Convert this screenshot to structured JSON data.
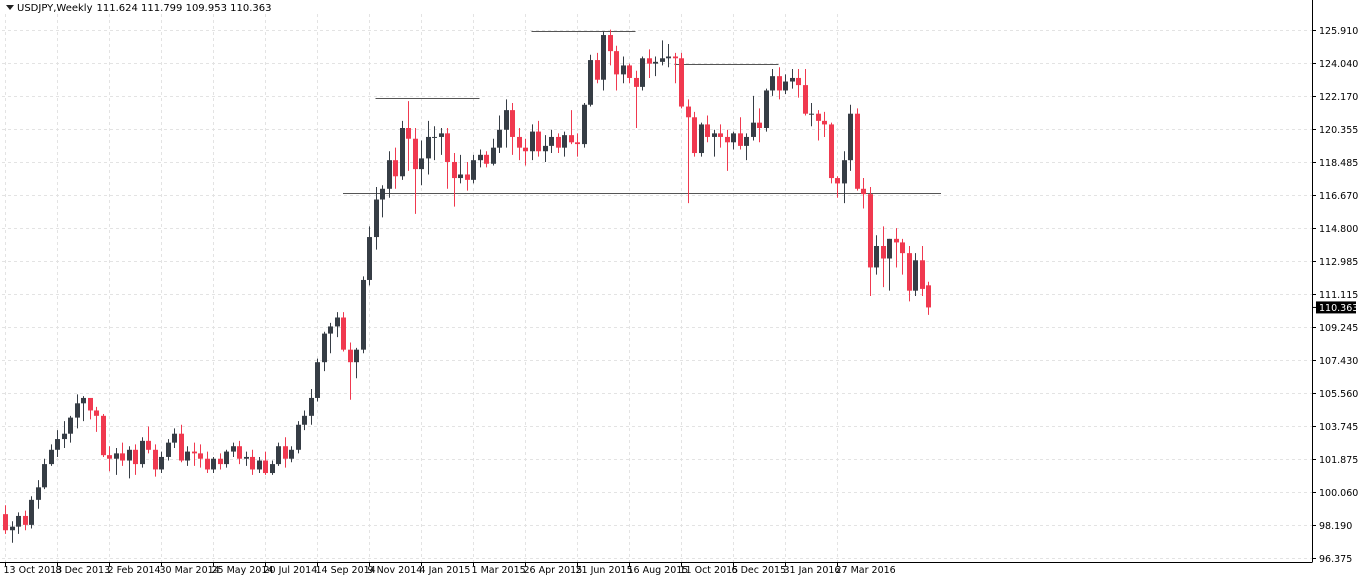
{
  "header": {
    "symbol_timeframe": "USDJPY,Weekly",
    "ohlc": "111.624 111.799 109.953 110.363"
  },
  "colors": {
    "bull": "#363d45",
    "bear": "#f0394f",
    "grid": "#e3e3e3",
    "level_line": "#555555",
    "axis": "#000000"
  },
  "chart_data": {
    "type": "candlestick",
    "symbol": "USDJPY",
    "timeframe": "Weekly",
    "current_price": 110.363,
    "current_price_label": "110.363",
    "y_ticks": [
      "125.910",
      "124.040",
      "122.170",
      "120.355",
      "118.485",
      "116.670",
      "114.800",
      "112.985",
      "111.115",
      "109.245",
      "107.430",
      "105.560",
      "103.745",
      "101.875",
      "100.060",
      "98.190",
      "96.375"
    ],
    "ylim": [
      96.375,
      127.2
    ],
    "x_tick_labels": [
      "13 Oct 2013",
      "8 Dec 2013",
      "2 Feb 2014",
      "30 Mar 2014",
      "25 May 2014",
      "20 Jul 2014",
      "14 Sep 2014",
      "9 Nov 2014",
      "4 Jan 2015",
      "1 Mar 2015",
      "26 Apr 2015",
      "21 Jun 2015",
      "16 Aug 2015",
      "11 Oct 2015",
      "6 Dec 2015",
      "31 Jan 2016",
      "27 Mar 2016"
    ],
    "grid": true,
    "levels": [
      {
        "price": 122.1,
        "from_week": 57,
        "to_week": 73
      },
      {
        "price": 125.85,
        "from_week": 81,
        "to_week": 97
      },
      {
        "price": 124.0,
        "from_week": 103,
        "to_week": 119
      },
      {
        "price": 116.75,
        "from_week": 52,
        "to_week": 144
      }
    ],
    "candles": [
      [
        98.8,
        99.3,
        97.7,
        97.9
      ],
      [
        97.9,
        98.4,
        97.2,
        98.1
      ],
      [
        98.1,
        98.9,
        97.7,
        98.7
      ],
      [
        98.7,
        99.0,
        97.9,
        98.2
      ],
      [
        98.2,
        99.8,
        98.0,
        99.6
      ],
      [
        99.6,
        100.7,
        99.1,
        100.3
      ],
      [
        100.3,
        101.9,
        100.2,
        101.6
      ],
      [
        101.6,
        102.7,
        101.5,
        102.4
      ],
      [
        102.4,
        103.5,
        102.0,
        103.0
      ],
      [
        103.0,
        104.0,
        102.5,
        103.3
      ],
      [
        103.3,
        104.3,
        102.8,
        104.2
      ],
      [
        104.2,
        105.5,
        103.6,
        105.0
      ],
      [
        105.0,
        105.4,
        104.0,
        105.3
      ],
      [
        105.3,
        105.3,
        104.1,
        104.6
      ],
      [
        104.6,
        104.8,
        103.4,
        104.3
      ],
      [
        104.3,
        104.4,
        102.0,
        102.1
      ],
      [
        102.1,
        102.6,
        101.2,
        101.9
      ],
      [
        101.9,
        102.5,
        101.0,
        102.2
      ],
      [
        102.2,
        102.8,
        101.5,
        101.8
      ],
      [
        101.8,
        102.6,
        100.8,
        102.4
      ],
      [
        102.4,
        102.7,
        101.0,
        101.6
      ],
      [
        101.6,
        103.1,
        101.4,
        102.9
      ],
      [
        102.9,
        103.7,
        102.2,
        102.4
      ],
      [
        102.4,
        102.7,
        100.9,
        101.3
      ],
      [
        101.3,
        102.3,
        101.1,
        102.0
      ],
      [
        102.0,
        103.0,
        101.8,
        102.8
      ],
      [
        102.8,
        103.6,
        102.5,
        103.3
      ],
      [
        103.3,
        103.8,
        101.7,
        101.8
      ],
      [
        101.8,
        102.6,
        101.5,
        102.3
      ],
      [
        102.3,
        102.8,
        101.5,
        102.2
      ],
      [
        102.2,
        102.7,
        101.4,
        101.9
      ],
      [
        101.9,
        102.3,
        101.1,
        101.3
      ],
      [
        101.3,
        102.0,
        101.1,
        101.9
      ],
      [
        101.9,
        102.2,
        101.3,
        101.6
      ],
      [
        101.6,
        102.4,
        101.4,
        102.3
      ],
      [
        102.3,
        102.8,
        102.0,
        102.6
      ],
      [
        102.6,
        102.9,
        101.6,
        101.9
      ],
      [
        101.9,
        102.3,
        101.5,
        102.0
      ],
      [
        102.0,
        102.4,
        101.0,
        101.3
      ],
      [
        101.3,
        102.0,
        101.1,
        101.8
      ],
      [
        101.8,
        102.3,
        101.0,
        101.1
      ],
      [
        101.1,
        101.8,
        101.0,
        101.6
      ],
      [
        101.6,
        102.8,
        101.5,
        102.6
      ],
      [
        102.6,
        103.1,
        101.4,
        101.9
      ],
      [
        101.9,
        102.6,
        101.7,
        102.4
      ],
      [
        102.4,
        104.0,
        102.2,
        103.8
      ],
      [
        103.8,
        104.6,
        103.5,
        104.3
      ],
      [
        104.3,
        105.8,
        103.8,
        105.3
      ],
      [
        105.3,
        107.5,
        105.1,
        107.3
      ],
      [
        107.3,
        109.0,
        106.8,
        108.9
      ],
      [
        108.9,
        109.5,
        107.8,
        109.3
      ],
      [
        109.3,
        110.1,
        108.7,
        109.8
      ],
      [
        109.8,
        110.1,
        107.9,
        108.0
      ],
      [
        108.0,
        108.4,
        105.2,
        107.3
      ],
      [
        107.3,
        108.1,
        106.4,
        108.0
      ],
      [
        108.0,
        112.1,
        107.8,
        111.9
      ],
      [
        111.9,
        114.9,
        111.6,
        114.3
      ],
      [
        114.3,
        117.1,
        113.6,
        116.4
      ],
      [
        116.4,
        117.2,
        115.4,
        117.0
      ],
      [
        117.0,
        119.1,
        116.5,
        118.6
      ],
      [
        118.6,
        119.3,
        117.0,
        117.7
      ],
      [
        117.7,
        120.8,
        117.5,
        120.4
      ],
      [
        120.4,
        121.9,
        118.0,
        119.8
      ],
      [
        119.8,
        120.4,
        115.6,
        118.1
      ],
      [
        118.1,
        119.7,
        117.2,
        118.7
      ],
      [
        118.7,
        120.8,
        117.8,
        119.9
      ],
      [
        119.9,
        120.5,
        118.6,
        119.9
      ],
      [
        119.9,
        120.4,
        118.9,
        120.1
      ],
      [
        120.1,
        120.4,
        117.0,
        118.5
      ],
      [
        118.5,
        119.0,
        116.0,
        117.6
      ],
      [
        117.6,
        118.9,
        117.3,
        117.8
      ],
      [
        117.8,
        118.5,
        116.9,
        117.5
      ],
      [
        117.5,
        118.9,
        117.3,
        118.6
      ],
      [
        118.6,
        119.2,
        118.2,
        118.9
      ],
      [
        118.9,
        119.1,
        118.2,
        118.4
      ],
      [
        118.4,
        119.8,
        118.3,
        119.3
      ],
      [
        119.3,
        121.1,
        119.0,
        120.3
      ],
      [
        120.3,
        122.0,
        119.3,
        121.4
      ],
      [
        121.4,
        121.8,
        118.9,
        119.9
      ],
      [
        119.9,
        120.4,
        118.6,
        119.3
      ],
      [
        119.3,
        119.8,
        118.3,
        119.1
      ],
      [
        119.1,
        120.6,
        118.6,
        120.2
      ],
      [
        120.2,
        120.8,
        118.8,
        119.1
      ],
      [
        119.1,
        120.0,
        118.5,
        119.4
      ],
      [
        119.4,
        120.3,
        119.0,
        119.9
      ],
      [
        119.9,
        120.1,
        119.0,
        119.3
      ],
      [
        119.3,
        120.2,
        118.8,
        120.0
      ],
      [
        120.0,
        121.4,
        119.5,
        119.6
      ],
      [
        119.6,
        120.1,
        118.8,
        119.5
      ],
      [
        119.5,
        121.8,
        119.3,
        121.7
      ],
      [
        121.7,
        124.5,
        121.6,
        124.2
      ],
      [
        124.2,
        124.6,
        122.9,
        123.1
      ],
      [
        123.1,
        125.8,
        122.5,
        125.6
      ],
      [
        125.6,
        125.9,
        123.9,
        124.7
      ],
      [
        124.7,
        125.0,
        122.5,
        123.4
      ],
      [
        123.4,
        124.4,
        122.9,
        123.9
      ],
      [
        123.9,
        124.0,
        122.9,
        123.2
      ],
      [
        123.2,
        123.6,
        120.4,
        122.7
      ],
      [
        122.7,
        124.4,
        122.5,
        124.3
      ],
      [
        124.3,
        124.8,
        123.2,
        124.0
      ],
      [
        124.0,
        124.4,
        123.3,
        124.1
      ],
      [
        124.1,
        125.3,
        123.9,
        124.3
      ],
      [
        124.3,
        125.1,
        123.8,
        124.4
      ],
      [
        124.4,
        124.6,
        122.9,
        124.3
      ],
      [
        124.3,
        124.6,
        121.5,
        121.6
      ],
      [
        121.6,
        122.0,
        116.2,
        121.0
      ],
      [
        121.0,
        121.3,
        118.8,
        119.0
      ],
      [
        119.0,
        120.7,
        118.8,
        120.6
      ],
      [
        120.6,
        121.1,
        119.6,
        119.9
      ],
      [
        119.9,
        120.3,
        118.8,
        120.1
      ],
      [
        120.1,
        120.6,
        119.3,
        119.9
      ],
      [
        119.9,
        120.3,
        118.0,
        119.6
      ],
      [
        119.6,
        120.2,
        119.2,
        120.1
      ],
      [
        120.1,
        121.0,
        119.2,
        119.4
      ],
      [
        119.4,
        120.1,
        118.6,
        119.9
      ],
      [
        119.9,
        122.2,
        119.7,
        120.7
      ],
      [
        120.7,
        121.5,
        119.6,
        120.4
      ],
      [
        120.4,
        122.6,
        120.2,
        122.5
      ],
      [
        122.5,
        123.7,
        122.2,
        123.3
      ],
      [
        123.3,
        123.8,
        122.0,
        122.5
      ],
      [
        122.5,
        123.4,
        122.3,
        123.0
      ],
      [
        123.0,
        123.7,
        122.6,
        123.2
      ],
      [
        123.2,
        123.7,
        122.1,
        122.8
      ],
      [
        122.8,
        123.7,
        121.1,
        121.2
      ],
      [
        121.2,
        121.8,
        120.5,
        121.2
      ],
      [
        121.2,
        121.4,
        119.7,
        120.8
      ],
      [
        120.8,
        121.3,
        119.9,
        120.6
      ],
      [
        120.6,
        120.7,
        117.3,
        117.6
      ],
      [
        117.6,
        117.7,
        116.5,
        117.3
      ],
      [
        117.3,
        119.1,
        116.2,
        118.6
      ],
      [
        118.6,
        121.7,
        118.0,
        121.2
      ],
      [
        121.2,
        121.5,
        116.9,
        117.0
      ],
      [
        117.0,
        117.6,
        115.9,
        116.7
      ],
      [
        116.7,
        117.1,
        111.0,
        112.6
      ],
      [
        112.6,
        114.4,
        112.2,
        113.8
      ],
      [
        113.8,
        114.9,
        111.5,
        113.1
      ],
      [
        113.1,
        114.2,
        111.3,
        114.2
      ],
      [
        114.2,
        114.8,
        112.6,
        114.0
      ],
      [
        114.0,
        114.2,
        112.2,
        113.4
      ],
      [
        113.4,
        113.8,
        110.7,
        111.3
      ],
      [
        111.3,
        113.4,
        111.0,
        113.0
      ],
      [
        113.0,
        113.8,
        111.0,
        111.4
      ],
      [
        111.6,
        111.8,
        109.95,
        110.363
      ]
    ]
  }
}
